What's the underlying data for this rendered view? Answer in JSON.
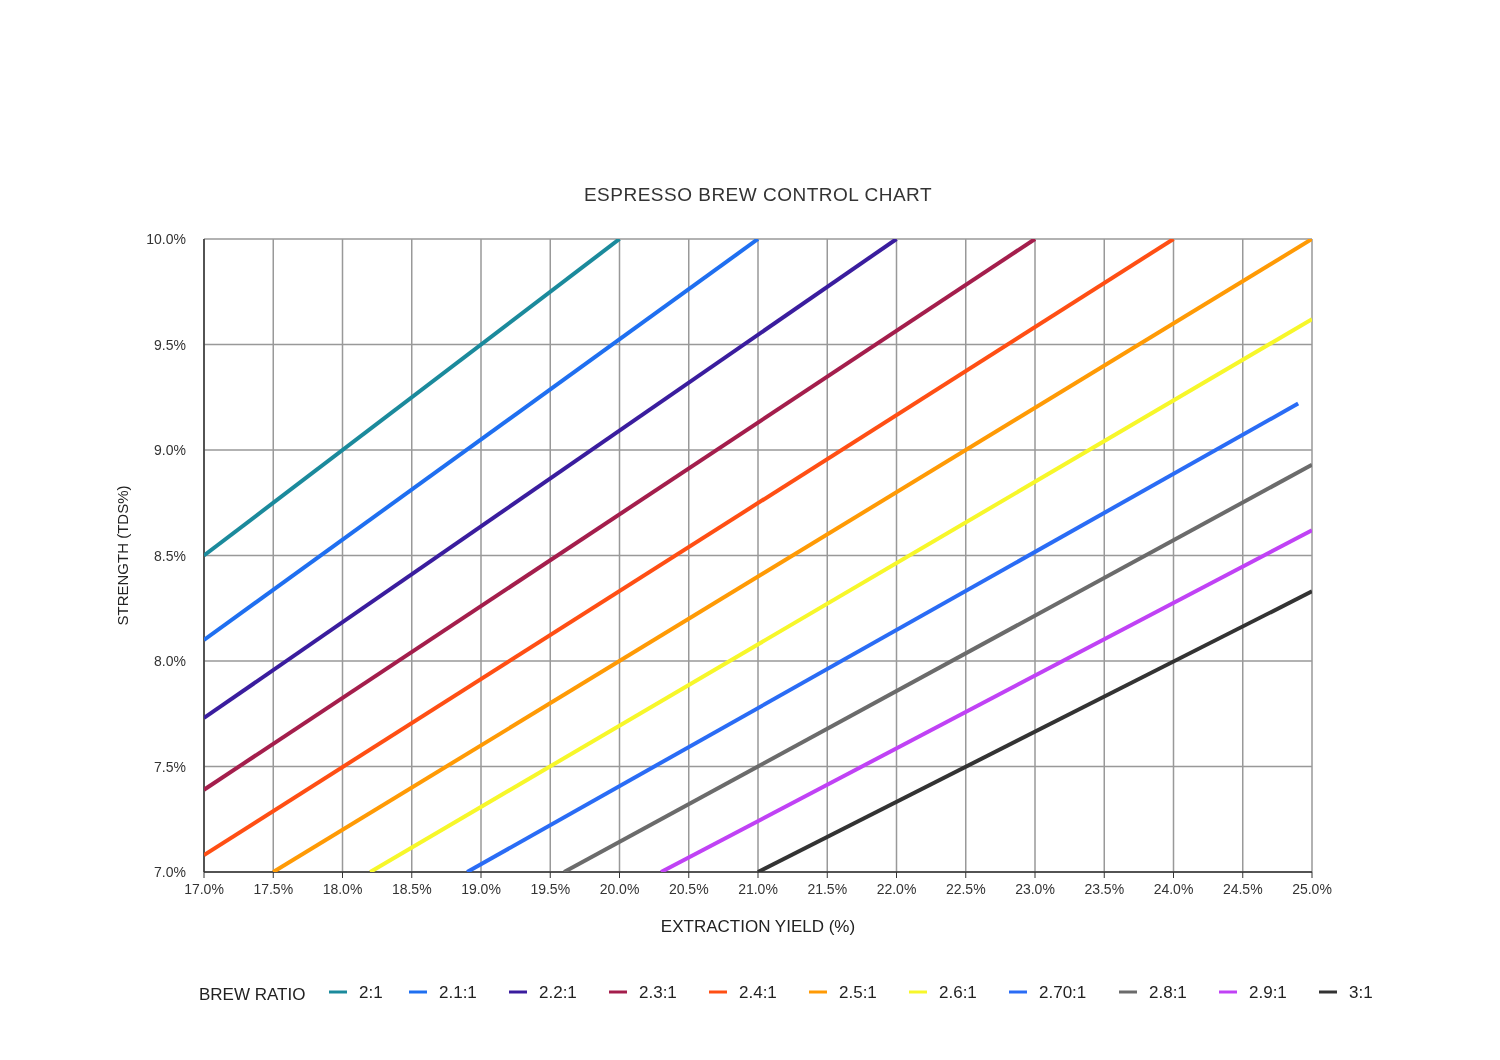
{
  "chart_data": {
    "type": "line",
    "title": "ESPRESSO BREW CONTROL CHART",
    "xlabel": "EXTRACTION YIELD (%)",
    "ylabel": "STRENGTH (TDS%)",
    "legend_title": "BREW RATIO",
    "legend": "bottom",
    "grid": true,
    "marker": "none",
    "line_style": "solid",
    "xlim": [
      17,
      25
    ],
    "ylim": [
      7,
      10
    ],
    "xticks": [
      {
        "value": 17,
        "label": "17.0%"
      },
      {
        "value": 17.5,
        "label": "17.5%"
      },
      {
        "value": 18,
        "label": "18.0%"
      },
      {
        "value": 18.5,
        "label": "18.5%"
      },
      {
        "value": 19,
        "label": "19.0%"
      },
      {
        "value": 19.5,
        "label": "19.5%"
      },
      {
        "value": 20,
        "label": "20.0%"
      },
      {
        "value": 20.5,
        "label": "20.5%"
      },
      {
        "value": 21,
        "label": "21.0%"
      },
      {
        "value": 21.5,
        "label": "21.5%"
      },
      {
        "value": 22,
        "label": "22.0%"
      },
      {
        "value": 22.5,
        "label": "22.5%"
      },
      {
        "value": 23,
        "label": "23.0%"
      },
      {
        "value": 23.5,
        "label": "23.5%"
      },
      {
        "value": 24,
        "label": "24.0%"
      },
      {
        "value": 24.5,
        "label": "24.5%"
      },
      {
        "value": 25,
        "label": "25.0%"
      }
    ],
    "yticks": [
      {
        "value": 7,
        "label": "7.0%"
      },
      {
        "value": 7.5,
        "label": "7.5%"
      },
      {
        "value": 8,
        "label": "8.0%"
      },
      {
        "value": 8.5,
        "label": "8.5%"
      },
      {
        "value": 9,
        "label": "9.0%"
      },
      {
        "value": 9.5,
        "label": "9.5%"
      },
      {
        "value": 10,
        "label": "10.0%"
      }
    ],
    "series": [
      {
        "name": "2:1",
        "color": "#1b8a9c",
        "x": [
          17,
          20
        ],
        "values": [
          8.5,
          10
        ]
      },
      {
        "name": "2.1:1",
        "color": "#1f6ff0",
        "x": [
          17,
          21
        ],
        "values": [
          8.1,
          10
        ]
      },
      {
        "name": "2.2:1",
        "color": "#3a1d9e",
        "x": [
          17,
          22
        ],
        "values": [
          7.73,
          10
        ]
      },
      {
        "name": "2.3:1",
        "color": "#a41e4c",
        "x": [
          17,
          23
        ],
        "values": [
          7.39,
          10
        ]
      },
      {
        "name": "2.4:1",
        "color": "#ff4f14",
        "x": [
          17,
          24
        ],
        "values": [
          7.08,
          10
        ]
      },
      {
        "name": "2.5:1",
        "color": "#ff9a05",
        "x": [
          17.5,
          25
        ],
        "values": [
          7,
          10
        ]
      },
      {
        "name": "2.6:1",
        "color": "#f7f72a",
        "x": [
          18.2,
          25
        ],
        "values": [
          7,
          9.62
        ]
      },
      {
        "name": "2.70:1",
        "color": "#2a6cf5",
        "x": [
          18.9,
          24.9
        ],
        "values": [
          7,
          9.22
        ]
      },
      {
        "name": "2.8:1",
        "color": "#6b6b6b",
        "x": [
          19.6,
          25
        ],
        "values": [
          7,
          8.93
        ]
      },
      {
        "name": "2.9:1",
        "color": "#c042f5",
        "x": [
          20.3,
          25
        ],
        "values": [
          7,
          8.62
        ]
      },
      {
        "name": "3:1",
        "color": "#333333",
        "x": [
          21,
          25
        ],
        "values": [
          7,
          8.33
        ]
      }
    ]
  }
}
